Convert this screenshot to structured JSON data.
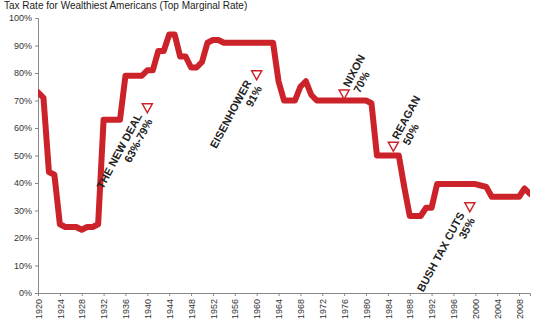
{
  "chart_data": {
    "type": "line",
    "title": "Tax Rate for Wealthiest Americans (Top Marginal Rate)",
    "color": "#cc2229",
    "x": [
      1920,
      1921,
      1922,
      1923,
      1924,
      1925,
      1926,
      1927,
      1928,
      1929,
      1930,
      1931,
      1932,
      1933,
      1934,
      1935,
      1936,
      1937,
      1938,
      1939,
      1940,
      1941,
      1942,
      1943,
      1944,
      1945,
      1946,
      1947,
      1948,
      1949,
      1950,
      1951,
      1952,
      1953,
      1954,
      1955,
      1956,
      1957,
      1958,
      1959,
      1960,
      1961,
      1962,
      1963,
      1964,
      1965,
      1966,
      1967,
      1968,
      1969,
      1970,
      1971,
      1972,
      1973,
      1974,
      1975,
      1976,
      1977,
      1978,
      1979,
      1980,
      1981,
      1982,
      1983,
      1984,
      1985,
      1986,
      1987,
      1988,
      1989,
      1990,
      1991,
      1992,
      1993,
      1994,
      1995,
      1996,
      1997,
      1998,
      1999,
      2000,
      2001,
      2002,
      2003,
      2004,
      2005,
      2006,
      2007,
      2008,
      2009,
      2010
    ],
    "values": [
      73,
      71,
      44,
      43,
      25,
      24,
      24,
      24,
      23,
      24,
      24,
      25,
      63,
      63,
      63,
      63,
      79,
      79,
      79,
      79,
      81,
      81,
      88,
      88,
      94,
      94,
      86,
      86,
      82,
      82,
      84,
      91,
      92,
      92,
      91,
      91,
      91,
      91,
      91,
      91,
      91,
      91,
      91,
      91,
      77,
      70,
      70,
      70,
      75,
      77,
      72,
      70,
      70,
      70,
      70,
      70,
      70,
      70,
      70,
      70,
      70,
      69,
      50,
      50,
      50,
      50,
      50,
      38.5,
      28,
      28,
      28,
      31,
      31,
      39.6,
      39.6,
      39.6,
      39.6,
      39.6,
      39.6,
      39.6,
      39.6,
      39.1,
      38.6,
      35,
      35,
      35,
      35,
      35,
      35,
      38,
      36
    ],
    "xlim": [
      1920,
      2010
    ],
    "xticks": [
      1920,
      1924,
      1928,
      1932,
      1936,
      1940,
      1944,
      1948,
      1952,
      1956,
      1960,
      1964,
      1968,
      1972,
      1976,
      1980,
      1984,
      1988,
      1992,
      1996,
      2000,
      2004,
      2008
    ],
    "ylim": [
      0,
      100
    ],
    "yticks": [
      {
        "value": 0,
        "label": "0%"
      },
      {
        "value": 10,
        "label": "10%"
      },
      {
        "value": 20,
        "label": "20%"
      },
      {
        "value": 30,
        "label": "30%"
      },
      {
        "value": 40,
        "label": "40%"
      },
      {
        "value": 50,
        "label": "50%"
      },
      {
        "value": 60,
        "label": "60%"
      },
      {
        "value": 70,
        "label": "70%"
      },
      {
        "value": 80,
        "label": "80%"
      },
      {
        "value": 90,
        "label": "90%"
      },
      {
        "value": 100,
        "label": "100%"
      }
    ],
    "annotations": [
      {
        "label": "THE NEW DEAL",
        "sublabel": "63%-79%",
        "x": 1940,
        "y": 67
      },
      {
        "label": "EISENHOWER",
        "sublabel": "91%",
        "x": 1960,
        "y": 79
      },
      {
        "label": "NIXON",
        "sublabel": "70%",
        "x": 1976,
        "y": 72
      },
      {
        "label": "REAGAN",
        "sublabel": "50%",
        "x": 1985,
        "y": 53
      },
      {
        "label": "BUSH TAX CUTS",
        "sublabel": "35%",
        "x": 1999,
        "y": 31
      }
    ]
  }
}
